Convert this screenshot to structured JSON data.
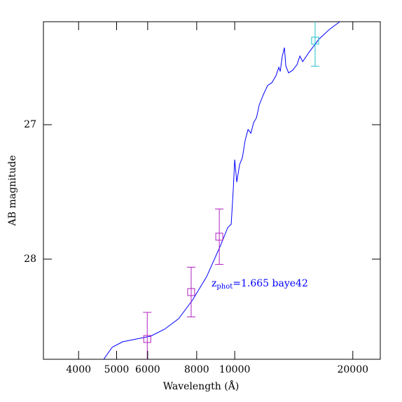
{
  "chart_data": {
    "type": "sed",
    "x_label": "Wavelength (Å)",
    "y_label": "AB magnitude",
    "annotation": {
      "z": "z",
      "sub": "phot",
      "rest": "=1.665 baye42",
      "color": "#0000ff"
    },
    "xscale": "log",
    "xlim": [
      3254,
      23500
    ],
    "ylim": [
      28.745,
      26.234
    ],
    "xticks": [
      4000,
      5000,
      6000,
      8000,
      10000,
      20000
    ],
    "yticks": [
      27,
      28
    ],
    "model": {
      "color": "#0000ff",
      "x": [
        4636,
        4870,
        5180,
        5623,
        6105,
        6628,
        7197,
        7815,
        8484,
        9211,
        9597,
        9797,
        9918,
        10000,
        10124,
        10292,
        10462,
        10636,
        10813,
        10993,
        11176,
        11360,
        11548,
        11836,
        12134,
        12435,
        12745,
        12956,
        13063,
        13224,
        13387,
        13500,
        13723,
        14064,
        14421,
        14660,
        14902,
        15400,
        16380,
        17422,
        18530
      ],
      "values": [
        28.745,
        28.656,
        28.615,
        28.594,
        28.573,
        28.521,
        28.443,
        28.302,
        28.13,
        27.896,
        27.766,
        27.74,
        27.479,
        27.26,
        27.427,
        27.297,
        27.245,
        27.115,
        27.036,
        27.063,
        26.984,
        26.948,
        26.854,
        26.776,
        26.708,
        26.688,
        26.635,
        26.573,
        26.604,
        26.49,
        26.427,
        26.563,
        26.615,
        26.594,
        26.552,
        26.49,
        26.531,
        26.469,
        26.365,
        26.292,
        26.234
      ]
    },
    "photometry": [
      {
        "color": "#b020c0",
        "x": [
          5985,
          7745,
          9135
        ],
        "values": [
          28.594,
          28.245,
          27.833
        ],
        "errors": [
          0.198,
          0.185,
          0.206
        ]
      },
      {
        "color": "#20c0c8",
        "x": [
          16030
        ],
        "values": [
          26.375
        ],
        "errors": [
          0.19
        ]
      }
    ]
  }
}
